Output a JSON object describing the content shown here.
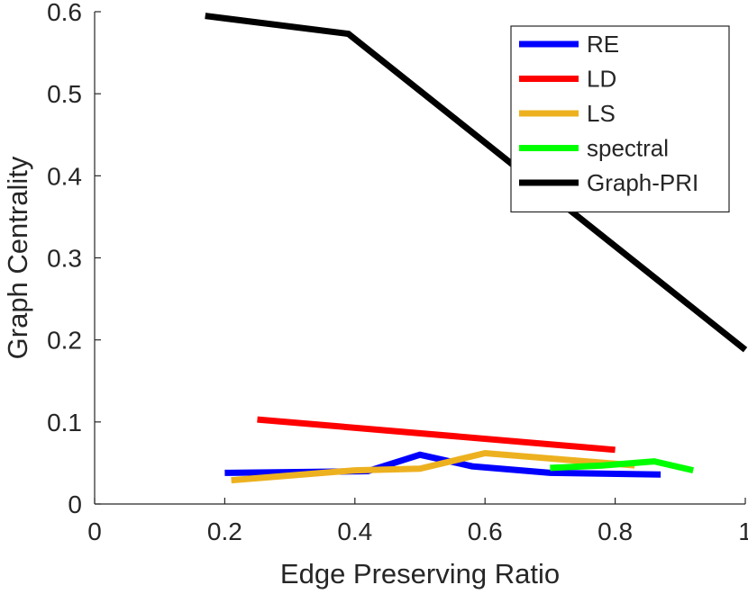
{
  "chart_data": {
    "type": "line",
    "title": "",
    "xlabel": "Edge Preserving Ratio",
    "ylabel": "Graph Centrality",
    "xlim": [
      0,
      1
    ],
    "ylim": [
      0,
      0.6
    ],
    "xticks": [
      0,
      0.2,
      0.4,
      0.6,
      0.8,
      1
    ],
    "xtick_labels": [
      "0",
      "0.2",
      "0.4",
      "0.6",
      "0.8",
      "1"
    ],
    "yticks": [
      0,
      0.1,
      0.2,
      0.3,
      0.4,
      0.5,
      0.6
    ],
    "ytick_labels": [
      "0",
      "0.1",
      "0.2",
      "0.3",
      "0.4",
      "0.5",
      "0.6"
    ],
    "legend_position": "top-right",
    "series": [
      {
        "name": "RE",
        "color": "#0000ff",
        "x": [
          0.2,
          0.42,
          0.5,
          0.58,
          0.7,
          0.87
        ],
        "y": [
          0.038,
          0.04,
          0.06,
          0.046,
          0.038,
          0.036
        ]
      },
      {
        "name": "LD",
        "color": "#ff0000",
        "x": [
          0.25,
          0.8
        ],
        "y": [
          0.103,
          0.066
        ]
      },
      {
        "name": "LS",
        "color": "#edb120",
        "x": [
          0.21,
          0.4,
          0.5,
          0.6,
          0.8,
          0.83
        ],
        "y": [
          0.029,
          0.041,
          0.043,
          0.062,
          0.049,
          0.047
        ]
      },
      {
        "name": "spectral",
        "color": "#00ff00",
        "x": [
          0.7,
          0.78,
          0.86,
          0.92
        ],
        "y": [
          0.044,
          0.047,
          0.052,
          0.041
        ]
      },
      {
        "name": "Graph-PRI",
        "color": "#000000",
        "x": [
          0.17,
          0.39,
          1.0
        ],
        "y": [
          0.595,
          0.573,
          0.188
        ]
      }
    ]
  }
}
